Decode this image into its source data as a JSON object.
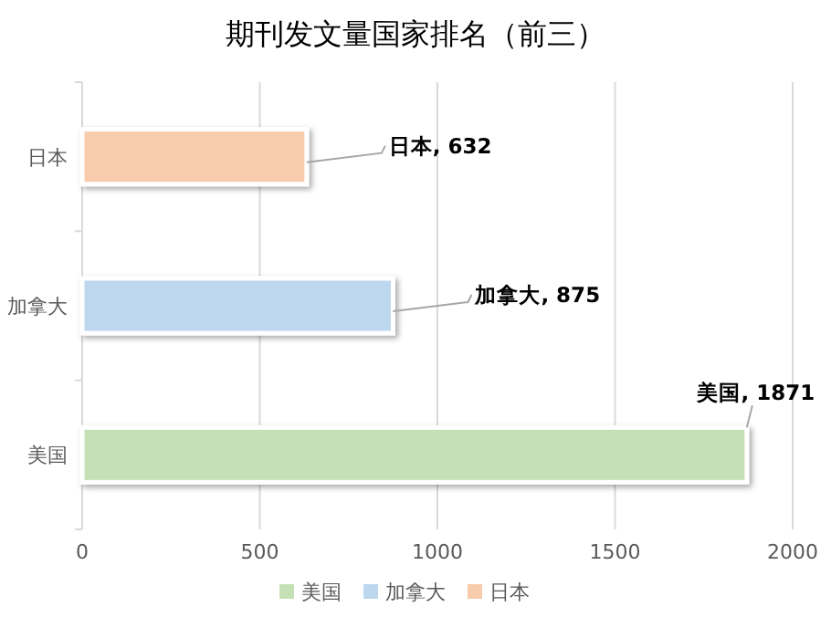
{
  "chart_data": {
    "type": "bar",
    "orientation": "horizontal",
    "title": "期刊发文量国家排名（前三）",
    "categories": [
      "日本",
      "加拿大",
      "美国"
    ],
    "series": [
      {
        "name": "美国",
        "color": "#c5e0b4",
        "values": [
          null,
          null,
          1871
        ],
        "value_labels": [
          null,
          null,
          "美国, 1871"
        ]
      },
      {
        "name": "加拿大",
        "color": "#bdd7ee",
        "values": [
          null,
          875,
          null
        ],
        "value_labels": [
          null,
          "加拿大, 875",
          null
        ]
      },
      {
        "name": "日本",
        "color": "#f8cbad",
        "values": [
          632,
          null,
          null
        ],
        "value_labels": [
          "日本, 632",
          null,
          null
        ]
      }
    ],
    "xlim": [
      0,
      2000
    ],
    "xticks": [
      0,
      500,
      1000,
      1500,
      2000
    ],
    "grid": "x",
    "legend": "bottom"
  }
}
